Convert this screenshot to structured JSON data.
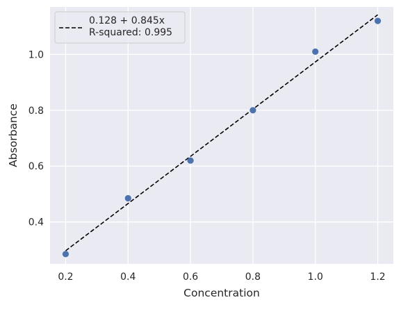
{
  "chart_data": {
    "type": "scatter",
    "title": "",
    "xlabel": "Concentration",
    "ylabel": "Absorbance",
    "xlim": [
      0.15,
      1.25
    ],
    "ylim": [
      0.25,
      1.17
    ],
    "x_ticks": [
      0.2,
      0.4,
      0.6,
      0.8,
      1.0,
      1.2
    ],
    "x_tick_labels": [
      "0.2",
      "0.4",
      "0.6",
      "0.8",
      "1.0",
      "1.2"
    ],
    "y_ticks": [
      0.4,
      0.6,
      0.8,
      1.0
    ],
    "y_tick_labels": [
      "0.4",
      "0.6",
      "0.8",
      "1.0"
    ],
    "grid": true,
    "legend_position": "top-left",
    "series": [
      {
        "kind": "points",
        "color": "#4c72b0",
        "x": [
          0.2,
          0.4,
          0.6,
          0.8,
          1.0,
          1.2
        ],
        "y": [
          0.285,
          0.485,
          0.62,
          0.8,
          1.01,
          1.12
        ]
      },
      {
        "kind": "fit-line",
        "name": "0.128 + 0.845x",
        "color": "#000000",
        "style": "dashed",
        "intercept": 0.128,
        "slope": 0.845,
        "x_range": [
          0.2,
          1.2
        ]
      }
    ],
    "legend": {
      "line_label": "0.128 + 0.845x",
      "r_squared_label": "R-squared: 0.995"
    },
    "colors": {
      "plot_background": "#eaeaf2",
      "grid": "#ffffff",
      "points": "#4c72b0",
      "fit_line": "#000000"
    }
  }
}
